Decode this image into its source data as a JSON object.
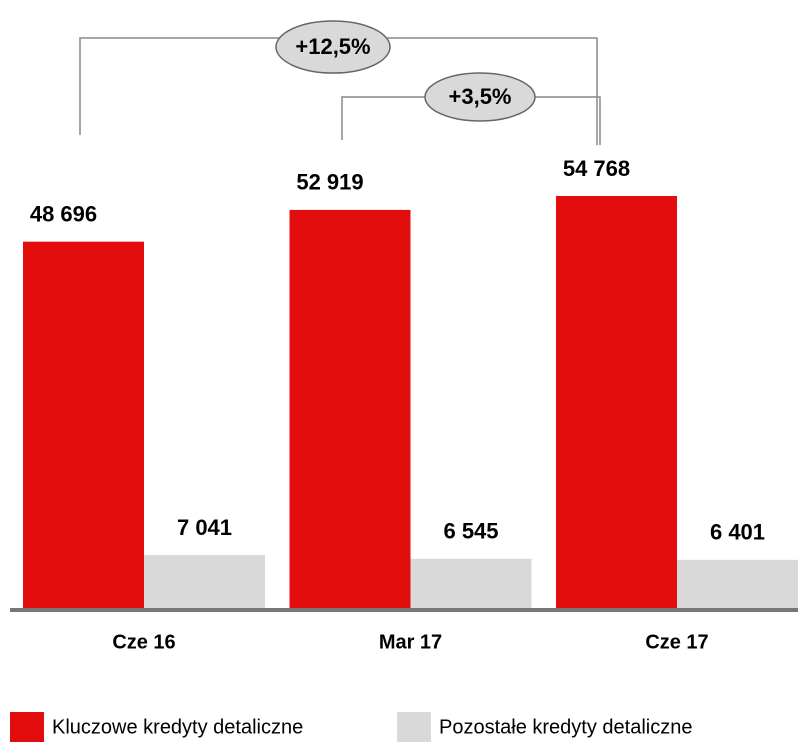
{
  "chart_data": {
    "type": "bar",
    "categories": [
      "Cze 16",
      "Mar 17",
      "Cze 17"
    ],
    "series": [
      {
        "name": "Kluczowe kredyty detaliczne",
        "color": "#e30d0d",
        "values": [
          48696,
          52919,
          54768
        ],
        "value_labels": [
          "48 696",
          "52 919",
          "54 768"
        ]
      },
      {
        "name": "Pozostałe kredyty detaliczne",
        "color": "#d9d9d9",
        "values": [
          7041,
          6545,
          6401
        ],
        "value_labels": [
          "7 041",
          "6 545",
          "6 401"
        ]
      }
    ],
    "annotations": [
      "+12,5%",
      "+3,5%"
    ]
  }
}
